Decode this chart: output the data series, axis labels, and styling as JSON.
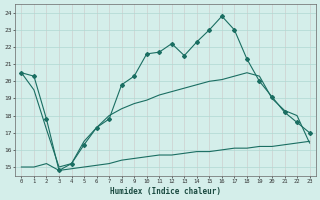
{
  "xlabel": "Humidex (Indice chaleur)",
  "x_values": [
    0,
    1,
    2,
    3,
    4,
    5,
    6,
    7,
    8,
    9,
    10,
    11,
    12,
    13,
    14,
    15,
    16,
    17,
    18,
    19,
    20,
    21,
    22,
    23
  ],
  "main_line": [
    20.5,
    20.3,
    17.8,
    14.8,
    15.2,
    16.3,
    17.3,
    17.8,
    19.8,
    20.3,
    21.6,
    21.7,
    22.2,
    21.5,
    22.3,
    23.0,
    23.8,
    23.0,
    21.3,
    20.0,
    19.1,
    18.2,
    17.6,
    17.0
  ],
  "upper_line": [
    20.5,
    19.5,
    17.2,
    15.0,
    15.2,
    16.5,
    17.3,
    18.0,
    18.4,
    18.7,
    18.9,
    19.2,
    19.4,
    19.6,
    19.8,
    20.0,
    20.1,
    20.3,
    20.5,
    20.3,
    19.0,
    18.3,
    18.0,
    16.4
  ],
  "lower_line": [
    15.0,
    15.0,
    15.2,
    14.8,
    14.9,
    15.0,
    15.1,
    15.2,
    15.4,
    15.5,
    15.6,
    15.7,
    15.7,
    15.8,
    15.9,
    15.9,
    16.0,
    16.1,
    16.1,
    16.2,
    16.2,
    16.3,
    16.4,
    16.5
  ],
  "ylim": [
    14.5,
    24.5
  ],
  "xlim": [
    -0.5,
    23.5
  ],
  "yticks": [
    15,
    16,
    17,
    18,
    19,
    20,
    21,
    22,
    23,
    24
  ],
  "xticks": [
    0,
    1,
    2,
    3,
    4,
    5,
    6,
    7,
    8,
    9,
    10,
    11,
    12,
    13,
    14,
    15,
    16,
    17,
    18,
    19,
    20,
    21,
    22,
    23
  ],
  "bg_color": "#d4eeea",
  "grid_color": "#b0d8d2",
  "line_color": "#1a6e62"
}
